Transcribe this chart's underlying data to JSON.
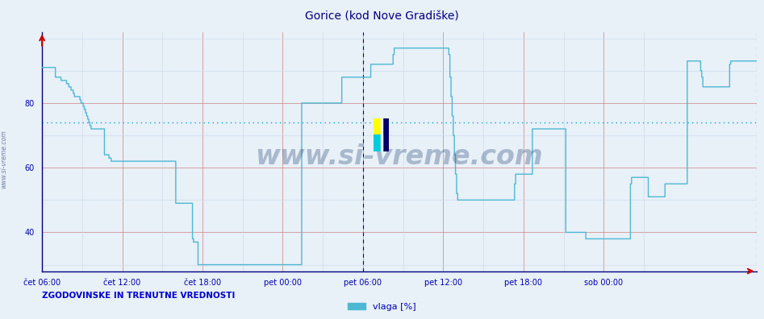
{
  "title": "Gorice (kod Nove Gradiške)",
  "line_color": "#4db8d4",
  "bg_color": "#e8f0f8",
  "plot_bg_color": "#e8f0f8",
  "grid_color_red": "#d08080",
  "grid_color_light": "#c8d8e8",
  "avg_line_color": "#00aacc",
  "vline1_color": "#000080",
  "vline2_color": "#ff00ff",
  "axis_color": "#000080",
  "title_color": "#000080",
  "label_color": "#0000aa",
  "watermark": "www.si-vreme.com",
  "watermark_color": "#1a3a6a",
  "legend_label": "vlaga [%]",
  "legend_color": "#4db8d4",
  "footer_text": "ZGODOVINSKE IN TRENUTNE VREDNOSTI",
  "footer_color": "#0000cc",
  "yticks": [
    40,
    60,
    80
  ],
  "ylim": [
    28,
    102
  ],
  "avg_value": 74,
  "x_tick_labels": [
    "čet 06:00",
    "čet 12:00",
    "čet 18:00",
    "pet 00:00",
    "pet 06:00",
    "pet 12:00",
    "pet 18:00",
    "sob 00:00"
  ],
  "humidity_data": [
    91,
    91,
    91,
    91,
    91,
    91,
    91,
    91,
    91,
    91,
    91,
    91,
    88,
    88,
    88,
    88,
    88,
    87,
    87,
    87,
    87,
    87,
    86,
    86,
    85,
    85,
    84,
    84,
    83,
    82,
    82,
    82,
    82,
    82,
    81,
    80,
    80,
    79,
    78,
    77,
    76,
    75,
    74,
    73,
    72,
    72,
    72,
    72,
    72,
    72,
    72,
    72,
    72,
    72,
    72,
    72,
    64,
    64,
    64,
    64,
    63,
    63,
    62,
    62,
    62,
    62,
    62,
    62,
    62,
    62,
    62,
    62,
    62,
    62,
    62,
    62,
    62,
    62,
    62,
    62,
    62,
    62,
    62,
    62,
    62,
    62,
    62,
    62,
    62,
    62,
    62,
    62,
    62,
    62,
    62,
    62,
    62,
    62,
    62,
    62,
    62,
    62,
    62,
    62,
    62,
    62,
    62,
    62,
    62,
    62,
    62,
    62,
    62,
    62,
    62,
    62,
    62,
    62,
    62,
    62,
    49,
    49,
    49,
    49,
    49,
    49,
    49,
    49,
    49,
    49,
    49,
    49,
    49,
    49,
    49,
    38,
    37,
    37,
    37,
    37,
    30,
    30,
    30,
    30,
    30,
    30,
    30,
    30,
    30,
    30,
    30,
    30,
    30,
    30,
    30,
    30,
    30,
    30,
    30,
    30,
    30,
    30,
    30,
    30,
    30,
    30,
    30,
    30,
    30,
    30,
    30,
    30,
    30,
    30,
    30,
    30,
    30,
    30,
    30,
    30,
    30,
    30,
    30,
    30,
    30,
    30,
    30,
    30,
    30,
    30,
    30,
    30,
    30,
    30,
    30,
    30,
    30,
    30,
    30,
    30,
    30,
    30,
    30,
    30,
    30,
    30,
    30,
    30,
    30,
    30,
    30,
    30,
    30,
    30,
    30,
    30,
    30,
    30,
    30,
    30,
    30,
    30,
    30,
    30,
    30,
    30,
    30,
    30,
    30,
    30,
    30,
    30,
    30,
    80,
    80,
    80,
    80,
    80,
    80,
    80,
    80,
    80,
    80,
    80,
    80,
    80,
    80,
    80,
    80,
    80,
    80,
    80,
    80,
    80,
    80,
    80,
    80,
    80,
    80,
    80,
    80,
    80,
    80,
    80,
    80,
    80,
    80,
    80,
    80,
    88,
    88,
    88,
    88,
    88,
    88,
    88,
    88,
    88,
    88,
    88,
    88,
    88,
    88,
    88,
    88,
    88,
    88,
    88,
    88,
    88,
    88,
    88,
    88,
    88,
    88,
    92,
    92,
    92,
    92,
    92,
    92,
    92,
    92,
    92,
    92,
    92,
    92,
    92,
    92,
    92,
    92,
    92,
    92,
    92,
    92,
    95,
    97,
    97,
    97,
    97,
    97,
    97,
    97,
    97,
    97,
    97,
    97,
    97,
    97,
    97,
    97,
    97,
    97,
    97,
    97,
    97,
    97,
    97,
    97,
    97,
    97,
    97,
    97,
    97,
    97,
    97,
    97,
    97,
    97,
    97,
    97,
    97,
    97,
    97,
    97,
    97,
    97,
    97,
    97,
    97,
    97,
    97,
    97,
    97,
    97,
    95,
    88,
    82,
    76,
    70,
    64,
    58,
    52,
    50,
    50,
    50,
    50,
    50,
    50,
    50,
    50,
    50,
    50,
    50,
    50,
    50,
    50,
    50,
    50,
    50,
    50,
    50,
    50,
    50,
    50,
    50,
    50,
    50,
    50,
    50,
    50,
    50,
    50,
    50,
    50,
    50,
    50,
    50,
    50,
    50,
    50,
    50,
    50,
    50,
    50,
    50,
    50,
    50,
    50,
    50,
    50,
    50,
    50,
    50,
    55,
    58,
    58,
    58,
    58,
    58,
    58,
    58,
    58,
    58,
    58,
    58,
    58,
    58,
    58,
    58,
    72,
    72,
    72,
    72,
    72,
    72,
    72,
    72,
    72,
    72,
    72,
    72,
    72,
    72,
    72,
    72,
    72,
    72,
    72,
    72,
    72,
    72,
    72,
    72,
    72,
    72,
    72,
    72,
    72,
    72,
    40,
    40,
    40,
    40,
    40,
    40,
    40,
    40,
    40,
    40,
    40,
    40,
    40,
    40,
    40,
    40,
    40,
    40,
    38,
    38,
    38,
    38,
    38,
    38,
    38,
    38,
    38,
    38,
    38,
    38,
    38,
    38,
    38,
    38,
    38,
    38,
    38,
    38,
    38,
    38,
    38,
    38,
    38,
    38,
    38,
    38,
    38,
    38,
    38,
    38,
    38,
    38,
    38,
    38,
    38,
    38,
    38,
    38,
    55,
    57,
    57,
    57,
    57,
    57,
    57,
    57,
    57,
    57,
    57,
    57,
    57,
    57,
    57,
    57,
    51,
    51,
    51,
    51,
    51,
    51,
    51,
    51,
    51,
    51,
    51,
    51,
    51,
    51,
    51,
    55,
    55,
    55,
    55,
    55,
    55,
    55,
    55,
    55,
    55,
    55,
    55,
    55,
    55,
    55,
    55,
    55,
    55,
    55,
    55,
    93,
    93,
    93,
    93,
    93,
    93,
    93,
    93,
    93,
    93,
    93,
    93,
    90,
    88,
    85,
    85,
    85,
    85,
    85,
    85,
    85,
    85,
    85,
    85,
    85,
    85,
    85,
    85,
    85,
    85,
    85,
    85,
    85,
    85,
    85,
    85,
    85,
    85,
    92,
    93,
    93,
    93,
    93,
    93,
    93,
    93,
    93,
    93,
    93,
    93,
    93,
    93,
    93,
    93,
    93,
    93,
    93,
    93,
    93,
    93,
    93,
    93,
    93
  ]
}
